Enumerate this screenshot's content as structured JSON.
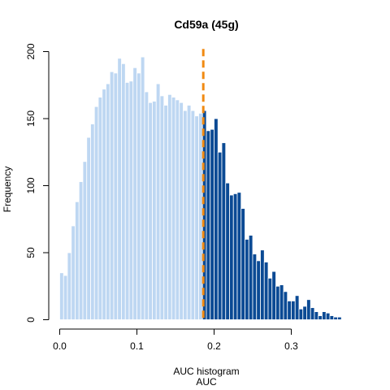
{
  "chart_data": {
    "type": "bar",
    "title": "Cd59a (45g)",
    "xlabel": "AUC histogram",
    "xlabel2": "AUC",
    "ylabel": "Frequency",
    "xlim": [
      0.0,
      0.39
    ],
    "ylim": [
      0,
      200
    ],
    "x_ticks": [
      "0.0",
      "0.1",
      "0.2",
      "0.3"
    ],
    "y_ticks": [
      "0",
      "50",
      "100",
      "150",
      "200"
    ],
    "bin_width": 0.005,
    "bin_start": 0.0,
    "values": [
      35,
      33,
      50,
      70,
      88,
      103,
      118,
      136,
      146,
      159,
      166,
      172,
      176,
      185,
      184,
      195,
      191,
      177,
      178,
      188,
      184,
      196,
      170,
      162,
      163,
      176,
      167,
      160,
      168,
      166,
      164,
      162,
      156,
      160,
      156,
      152,
      154,
      156,
      141,
      142,
      150,
      125,
      132,
      102,
      93,
      94,
      95,
      83,
      60,
      63,
      49,
      44,
      52,
      43,
      31,
      36,
      25,
      26,
      21,
      14,
      14,
      18,
      8,
      10,
      15,
      9,
      6,
      3,
      6,
      5,
      3,
      2,
      2,
      0,
      0,
      0,
      0,
      0,
      0
    ],
    "threshold": 0.186,
    "colors": {
      "below": "#bed7f2",
      "above": "#0b4a94",
      "threshold_line": "#f08a12",
      "axis": "#000000"
    }
  }
}
